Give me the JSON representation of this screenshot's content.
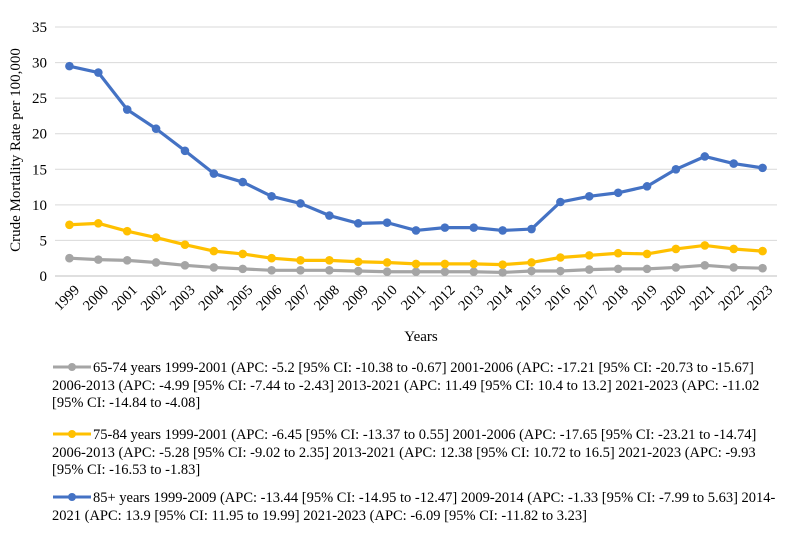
{
  "chart_data": {
    "type": "line",
    "title": "",
    "xlabel": "Years",
    "ylabel": "Crude Mortality Rate per 100,000",
    "ylim": [
      0,
      35
    ],
    "yticks": [
      0,
      5,
      10,
      15,
      20,
      25,
      30,
      35
    ],
    "grid": true,
    "legend_position": "bottom",
    "categories": [
      "1999",
      "2000",
      "2001",
      "2002",
      "2003",
      "2004",
      "2005",
      "2006",
      "2007",
      "2008",
      "2009",
      "2010",
      "2011",
      "2012",
      "2013",
      "2014",
      "2015",
      "2016",
      "2017",
      "2018",
      "2019",
      "2020",
      "2021",
      "2022",
      "2023"
    ],
    "series": [
      {
        "name": "65-74 years 1999-2001 (APC: -5.2 [95% CI: -10.38 to -0.67] 2001-2006 (APC: -17.21 [95% CI: -20.73 to -15.67] 2006-2013 (APC: -4.99 [95% CI: -7.44 to -2.43] 2013-2021 (APC: 11.49 [95% CI: 10.4 to 13.2] 2021-2023 (APC: -11.02 [95% CI: -14.84 to -4.08]",
        "color": "#a5a5a5",
        "values": [
          2.5,
          2.3,
          2.2,
          1.9,
          1.5,
          1.2,
          1.0,
          0.8,
          0.8,
          0.8,
          0.7,
          0.6,
          0.6,
          0.6,
          0.6,
          0.5,
          0.7,
          0.7,
          0.9,
          1.0,
          1.0,
          1.2,
          1.5,
          1.2,
          1.1
        ]
      },
      {
        "name": "75-84 years 1999-2001 (APC: -6.45 [95% CI: -13.37 to 0.55] 2001-2006 (APC: -17.65 [95% CI: -23.21 to -14.74] 2006-2013 (APC: -5.28 [95% CI: -9.02 to 2.35] 2013-2021 (APC: 12.38 [95% CI: 10.72 to 16.5] 2021-2023 (APC: -9.93 [95% CI: -16.53 to -1.83]",
        "color": "#ffc000",
        "values": [
          7.2,
          7.4,
          6.3,
          5.4,
          4.4,
          3.5,
          3.1,
          2.5,
          2.2,
          2.2,
          2.0,
          1.9,
          1.7,
          1.7,
          1.7,
          1.6,
          1.9,
          2.6,
          2.9,
          3.2,
          3.1,
          3.8,
          4.3,
          3.8,
          3.5
        ]
      },
      {
        "name": "85+ years 1999-2009 (APC: -13.44 [95% CI: -14.95 to -12.47] 2009-2014 (APC: -1.33 [95% CI: -7.99 to 5.63] 2014-2021 (APC: 13.9 [95% CI: 11.95 to 19.99] 2021-2023 (APC: -6.09 [95% CI: -11.82 to 3.23]",
        "color": "#4472c4",
        "values": [
          29.5,
          28.6,
          23.4,
          20.7,
          17.6,
          14.4,
          13.2,
          11.2,
          10.2,
          8.5,
          7.4,
          7.5,
          6.4,
          6.8,
          6.8,
          6.4,
          6.6,
          10.4,
          11.2,
          11.7,
          12.6,
          15.0,
          16.8,
          15.8,
          15.2
        ]
      }
    ]
  }
}
